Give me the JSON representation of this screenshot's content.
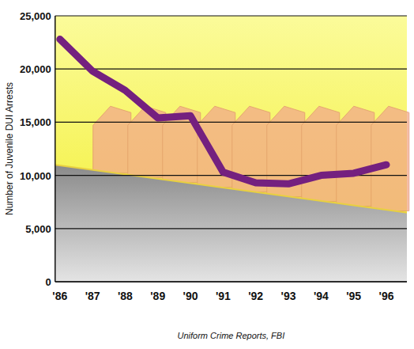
{
  "chart_data": {
    "type": "line",
    "y_label": "Number of Juvenile DUI Arrests",
    "source": "Uniform Crime Reports, FBI",
    "categories": [
      "'86",
      "'87",
      "'88",
      "'89",
      "'90",
      "'91",
      "'92",
      "'93",
      "'94",
      "'95",
      "'96"
    ],
    "values": [
      22800,
      19800,
      18000,
      15400,
      15600,
      10300,
      9300,
      9200,
      10000,
      10200,
      11000
    ],
    "color": "#74207f",
    "ylim": [
      0,
      25000
    ],
    "yticks": [
      0,
      {
        "value": 5000,
        "label": "5,000"
      },
      {
        "value": 10000,
        "label": "10,000"
      },
      {
        "value": 15000,
        "label": "15,000"
      },
      {
        "value": 20000,
        "label": "20,000"
      },
      {
        "value": 25000,
        "label": "25,000"
      }
    ],
    "grid": true
  }
}
